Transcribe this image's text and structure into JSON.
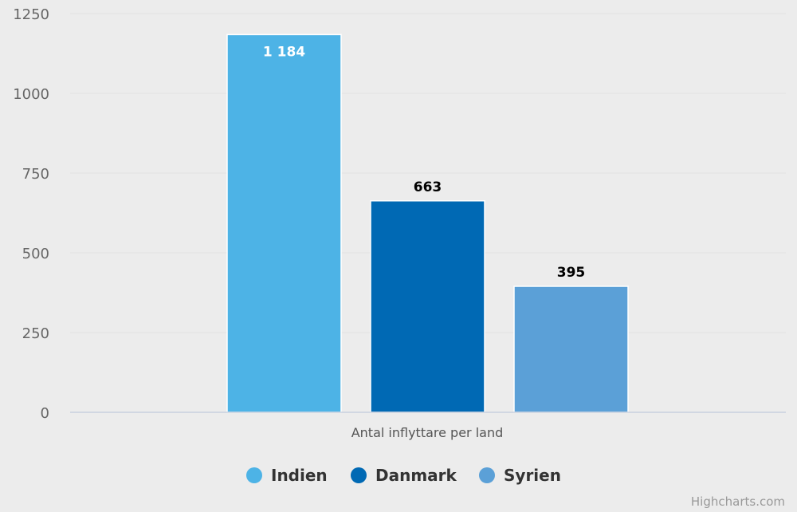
{
  "chart_data": {
    "type": "bar",
    "title": "",
    "xlabel": "",
    "ylabel": "",
    "categories": [
      "Antal inflyttare per land"
    ],
    "series": [
      {
        "name": "Indien",
        "values": [
          1184
        ],
        "label": "1 184",
        "color": "#4db3e6"
      },
      {
        "name": "Danmark",
        "values": [
          663
        ],
        "label": "663",
        "color": "#0069b4"
      },
      {
        "name": "Syrien",
        "values": [
          395
        ],
        "label": "395",
        "color": "#5ba0d7"
      }
    ],
    "ylim": [
      0,
      1250
    ],
    "yticks": [
      {
        "value": 0,
        "label": "0"
      },
      {
        "value": 250,
        "label": "250"
      },
      {
        "value": 500,
        "label": "500"
      },
      {
        "value": 750,
        "label": "750"
      },
      {
        "value": 1000,
        "label": "1000"
      },
      {
        "value": 1250,
        "label": "1250"
      }
    ],
    "grid": true,
    "legend_position": "bottom-center"
  },
  "credits": "Highcharts.com"
}
